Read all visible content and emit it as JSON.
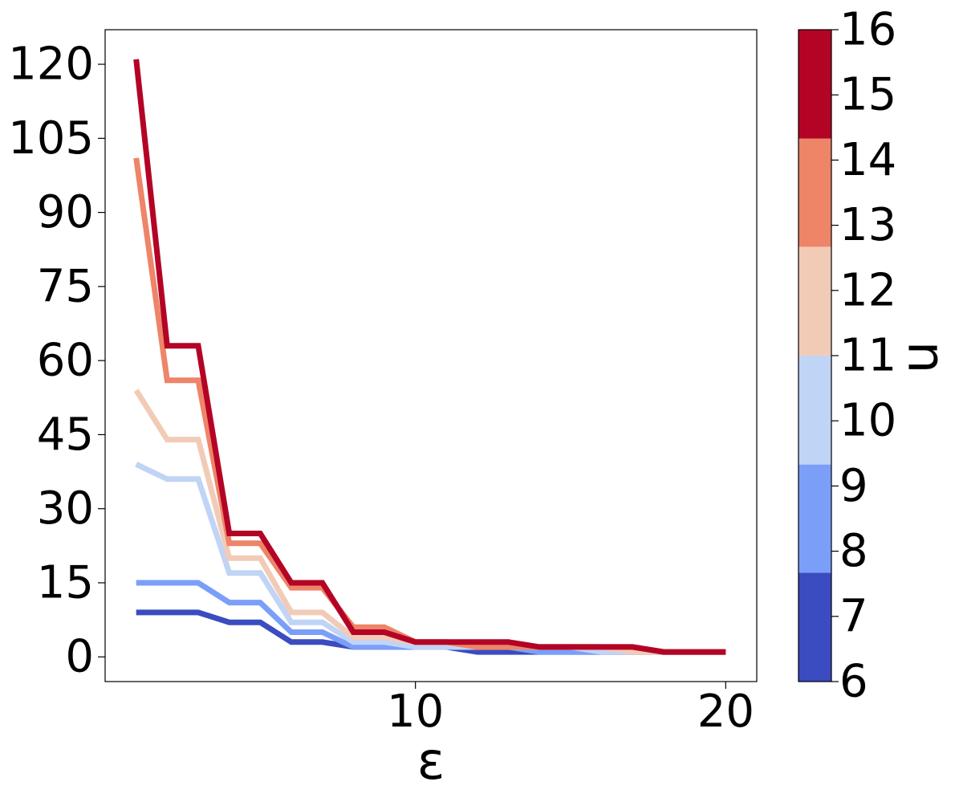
{
  "chart_data": {
    "type": "line",
    "xlabel": "ε",
    "ylabel": "",
    "xlim": [
      0,
      21
    ],
    "ylim": [
      -5,
      127
    ],
    "x_ticks": [
      10,
      20
    ],
    "y_ticks": [
      0,
      15,
      30,
      45,
      60,
      75,
      90,
      105,
      120
    ],
    "x": [
      1,
      2,
      3,
      4,
      5,
      6,
      7,
      8,
      9,
      10,
      11,
      12,
      13,
      14,
      15,
      16,
      17,
      18,
      19,
      20
    ],
    "series": [
      {
        "n": 7,
        "color": "#3b4cc0",
        "values": [
          9,
          9,
          9,
          7,
          7,
          3,
          3,
          2,
          2,
          2,
          2,
          1,
          1,
          1,
          1,
          1,
          1,
          1,
          1,
          1
        ]
      },
      {
        "n": 9,
        "color": "#7b9ff9",
        "values": [
          15,
          15,
          15,
          11,
          11,
          5,
          5,
          2,
          2,
          2,
          2,
          2,
          2,
          1,
          1,
          1,
          1,
          1,
          1,
          1
        ]
      },
      {
        "n": 11,
        "color": "#c0d4f5",
        "values": [
          39,
          36,
          36,
          17,
          17,
          7,
          7,
          3,
          3,
          2,
          2,
          2,
          2,
          2,
          2,
          1,
          1,
          1,
          1,
          1
        ]
      },
      {
        "n": 12,
        "color": "#f2cbb7",
        "values": [
          54,
          44,
          44,
          20,
          20,
          9,
          9,
          4,
          4,
          3,
          3,
          2,
          2,
          2,
          2,
          2,
          1,
          1,
          1,
          1
        ]
      },
      {
        "n": 14,
        "color": "#ee8468",
        "values": [
          101,
          56,
          56,
          23,
          23,
          14,
          14,
          6,
          6,
          3,
          3,
          2,
          2,
          2,
          2,
          2,
          2,
          1,
          1,
          1
        ]
      },
      {
        "n": 16,
        "color": "#b40426",
        "values": [
          121,
          63,
          63,
          25,
          25,
          15,
          15,
          5,
          5,
          3,
          3,
          3,
          3,
          2,
          2,
          2,
          2,
          1,
          1,
          1
        ]
      }
    ],
    "colorbar": {
      "label": "n",
      "range": [
        6,
        16
      ],
      "ticks": [
        6,
        7,
        8,
        9,
        10,
        11,
        12,
        13,
        14,
        15,
        16
      ],
      "bands": [
        {
          "from": 6,
          "to": 7.67,
          "color": "#3b4cc0"
        },
        {
          "from": 7.67,
          "to": 9.33,
          "color": "#7b9ff9"
        },
        {
          "from": 9.33,
          "to": 11,
          "color": "#c0d4f5"
        },
        {
          "from": 11,
          "to": 12.67,
          "color": "#f2cbb7"
        },
        {
          "from": 12.67,
          "to": 14.33,
          "color": "#ee8468"
        },
        {
          "from": 14.33,
          "to": 16,
          "color": "#b40426"
        }
      ]
    },
    "grid": false,
    "legend": "none"
  }
}
